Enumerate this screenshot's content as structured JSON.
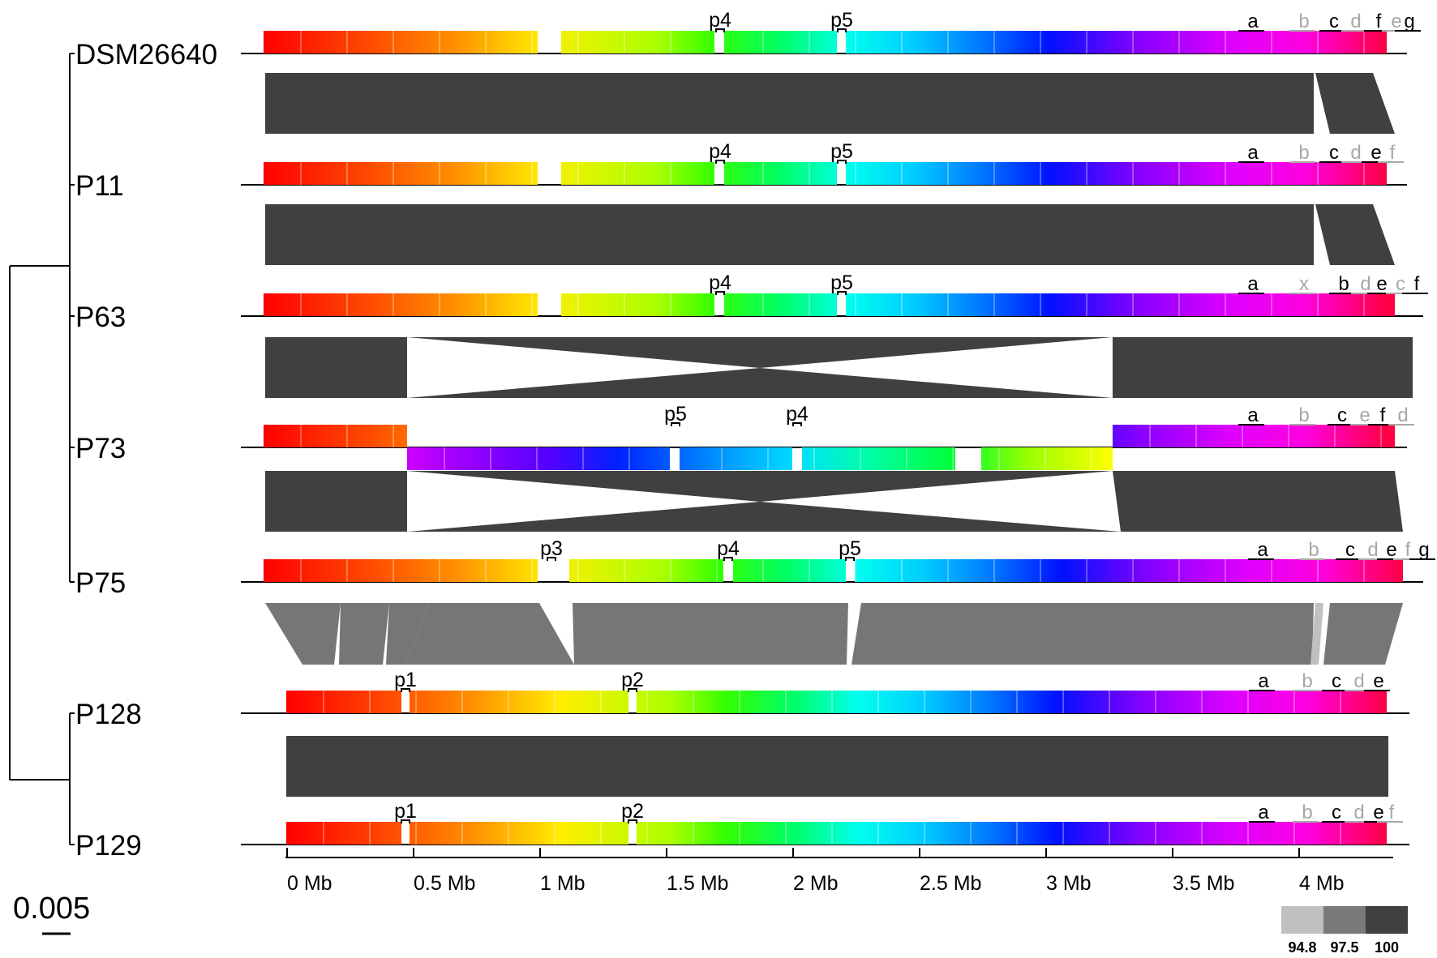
{
  "genomes": [
    {
      "name": "DSM26640",
      "markers": [
        {
          "label": "p4"
        },
        {
          "label": "p5"
        }
      ],
      "regions": [
        {
          "label": "a",
          "color": "#000000"
        },
        {
          "label": "b",
          "color": "#a8a8a8"
        },
        {
          "label": "c",
          "color": "#000000"
        },
        {
          "label": "d",
          "color": "#a8a8a8"
        },
        {
          "label": "f",
          "color": "#000000"
        },
        {
          "label": "e",
          "color": "#a8a8a8"
        },
        {
          "label": "g",
          "color": "#000000"
        }
      ]
    },
    {
      "name": "P11",
      "markers": [
        {
          "label": "p4"
        },
        {
          "label": "p5"
        }
      ],
      "regions": [
        {
          "label": "a",
          "color": "#000000"
        },
        {
          "label": "b",
          "color": "#a8a8a8"
        },
        {
          "label": "c",
          "color": "#000000"
        },
        {
          "label": "d",
          "color": "#a8a8a8"
        },
        {
          "label": "e",
          "color": "#000000"
        },
        {
          "label": "f",
          "color": "#a8a8a8"
        }
      ]
    },
    {
      "name": "P63",
      "markers": [
        {
          "label": "p4"
        },
        {
          "label": "p5"
        }
      ],
      "regions": [
        {
          "label": "a",
          "color": "#000000"
        },
        {
          "label": "x",
          "color": "#a8a8a8"
        },
        {
          "label": "b",
          "color": "#000000"
        },
        {
          "label": "d",
          "color": "#a8a8a8"
        },
        {
          "label": "e",
          "color": "#000000"
        },
        {
          "label": "c",
          "color": "#a8a8a8"
        },
        {
          "label": "f",
          "color": "#000000"
        }
      ]
    },
    {
      "name": "P73",
      "markers": [
        {
          "label": "p5"
        },
        {
          "label": "p4"
        }
      ],
      "regions": [
        {
          "label": "a",
          "color": "#000000"
        },
        {
          "label": "b",
          "color": "#a8a8a8"
        },
        {
          "label": "c",
          "color": "#000000"
        },
        {
          "label": "e",
          "color": "#a8a8a8"
        },
        {
          "label": "f",
          "color": "#000000"
        },
        {
          "label": "d",
          "color": "#a8a8a8"
        }
      ]
    },
    {
      "name": "P75",
      "markers": [
        {
          "label": "p3"
        },
        {
          "label": "p4"
        },
        {
          "label": "p5"
        }
      ],
      "regions": [
        {
          "label": "a",
          "color": "#000000"
        },
        {
          "label": "b",
          "color": "#a8a8a8"
        },
        {
          "label": "c",
          "color": "#000000"
        },
        {
          "label": "d",
          "color": "#a8a8a8"
        },
        {
          "label": "e",
          "color": "#000000"
        },
        {
          "label": "f",
          "color": "#a8a8a8"
        },
        {
          "label": "g",
          "color": "#000000"
        }
      ]
    },
    {
      "name": "P128",
      "markers": [
        {
          "label": "p1"
        },
        {
          "label": "p2"
        }
      ],
      "regions": [
        {
          "label": "a",
          "color": "#000000"
        },
        {
          "label": "b",
          "color": "#a8a8a8"
        },
        {
          "label": "c",
          "color": "#000000"
        },
        {
          "label": "d",
          "color": "#a8a8a8"
        },
        {
          "label": "e",
          "color": "#000000"
        }
      ]
    },
    {
      "name": "P129",
      "markers": [
        {
          "label": "p1"
        },
        {
          "label": "p2"
        }
      ],
      "regions": [
        {
          "label": "a",
          "color": "#000000"
        },
        {
          "label": "b",
          "color": "#a8a8a8"
        },
        {
          "label": "c",
          "color": "#000000"
        },
        {
          "label": "d",
          "color": "#a8a8a8"
        },
        {
          "label": "e",
          "color": "#000000"
        },
        {
          "label": "f",
          "color": "#a8a8a8"
        }
      ]
    }
  ],
  "axis": {
    "ticks": [
      "0 Mb",
      "0.5 Mb",
      "1 Mb",
      "1.5 Mb",
      "2 Mb",
      "2.5 Mb",
      "3 Mb",
      "3.5 Mb",
      "4 Mb"
    ]
  },
  "scale_bar": {
    "label": "0.005"
  },
  "identity_legend": [
    {
      "label": "94.8",
      "color": "#c0c0c0"
    },
    {
      "label": "97.5",
      "color": "#7a7a7a"
    },
    {
      "label": "100",
      "color": "#404040"
    }
  ],
  "colors": {
    "synteny_dark": "#404040",
    "tree": "#000000"
  }
}
